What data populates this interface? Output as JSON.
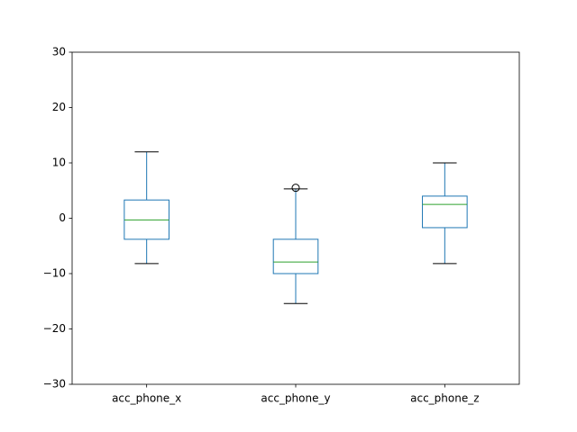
{
  "chart_data": {
    "type": "box",
    "categories": [
      "acc_phone_x",
      "acc_phone_y",
      "acc_phone_z"
    ],
    "boxes": [
      {
        "whislo": -8.2,
        "q1": -3.8,
        "med": -0.3,
        "q3": 3.3,
        "whishi": 12,
        "fliers": []
      },
      {
        "whislo": -15.4,
        "q1": -10,
        "med": -7.9,
        "q3": -3.8,
        "whishi": 5.3,
        "fliers": [
          5.5
        ]
      },
      {
        "whislo": -8.2,
        "q1": -1.7,
        "med": 2.5,
        "q3": 4.0,
        "whishi": 10,
        "fliers": []
      }
    ],
    "box_color": "#1f77b4",
    "median_color": "#2ca02c",
    "cap_color": "#000000",
    "ylim": [
      -30,
      30
    ],
    "yticks": [
      {
        "value": -30,
        "label": "−30"
      },
      {
        "value": -20,
        "label": "−20"
      },
      {
        "value": -10,
        "label": "−10"
      },
      0,
      10,
      20,
      30
    ],
    "grid": false
  }
}
